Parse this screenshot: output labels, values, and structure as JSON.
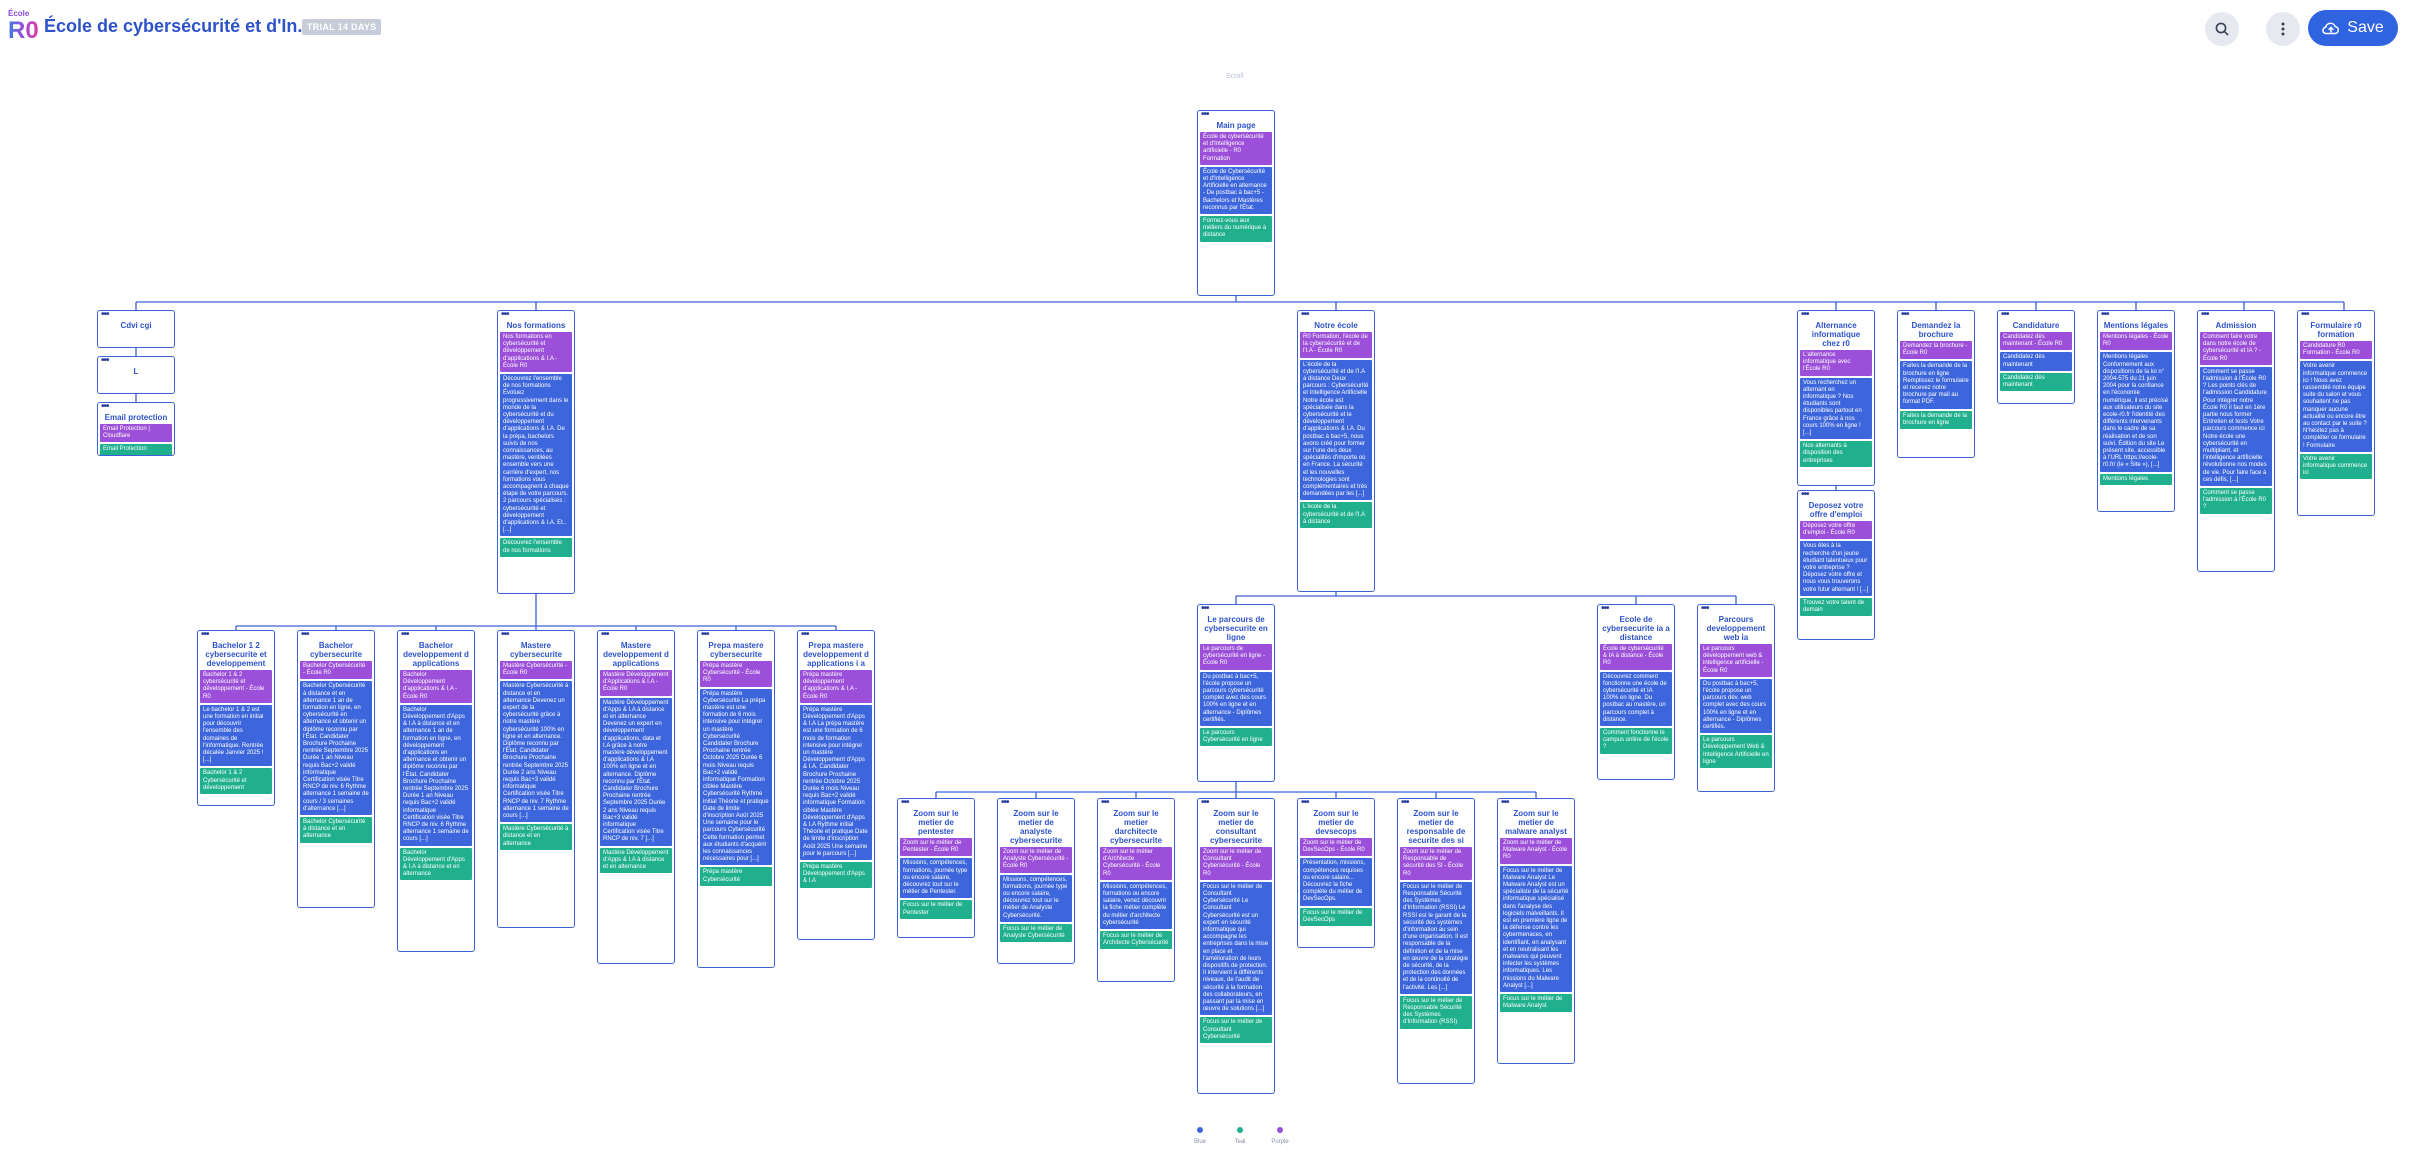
{
  "header": {
    "logo_line1": "École",
    "logo_line2": "R0",
    "site_title": "École de cybersécurité et d'In...",
    "trial_badge": "TRIAL 14 DAYS",
    "save_label": "Save",
    "icons": [
      "search-icon",
      "more-vertical-icon",
      "cloud-upload-icon"
    ]
  },
  "canvas": {
    "scroll_label": "Scroll"
  },
  "legend": [
    {
      "label": "Blue",
      "color": "#3d66dc"
    },
    {
      "label": "Teal",
      "color": "#20b08e"
    },
    {
      "label": "Purple",
      "color": "#9c4fd8"
    }
  ],
  "colors": {
    "accent": "#2f63e0",
    "card_border": "#3d62d6",
    "purple": "#9c4fd8",
    "blue": "#3d66dc",
    "teal": "#20b08e"
  },
  "cards": {
    "main": {
      "title": "Main page",
      "sections": [
        {
          "c": "p",
          "t": "École de cybersécurité et d'Intelligence artificielle - R0 Formation"
        },
        {
          "c": "b",
          "t": "École de Cybersécurité et d'Intelligence Artificielle en alternance - De postbac à bac+5 - Bachelors et Mastères reconnus par l'État."
        },
        {
          "c": "g",
          "t": "Formez-vous aux métiers du numérique à distance"
        }
      ]
    },
    "cdv": {
      "title": "Cdvi cgi",
      "sections": []
    },
    "l": {
      "title": "L",
      "sections": []
    },
    "email": {
      "title": "Email protection",
      "sections": [
        {
          "c": "p",
          "t": "Email Protection | Cloudflare"
        },
        {
          "c": "g",
          "t": "Email Protection"
        }
      ]
    },
    "nosformations": {
      "title": "Nos formations",
      "sections": [
        {
          "c": "p",
          "t": "Nos formations en cybersécurité et développement d'applications & I.A - École R0"
        },
        {
          "c": "b",
          "t": "Découvrez l'ensemble de nos formations Évoluez progressivement dans le monde de la cybersécurité et du développement d'applications & I.A. De la prépa, bachelors suivis de nos connaissances, au mastère, ventilées ensemble vers une carrière d'expert, nos formations vous accompagnent à chaque étape de votre parcours. 2 parcours spécialisés : cybersécurité et développement d'applications & I.A. Et..[...]"
        },
        {
          "c": "g",
          "t": "Découvrez l'ensemble de nos formations"
        }
      ]
    },
    "notreecole": {
      "title": "Notre école",
      "sections": [
        {
          "c": "p",
          "t": "R0 Formation, l'école de la cybersécurité et de l'I.A - École R0"
        },
        {
          "c": "b",
          "t": "L'école de la cybersécurité et de l'I.A à distance Deux parcours : Cybersécurité et Intelligence Artificielle Notre école est spécialisée dans la cybersécurité et le développement d'applications & I.A. Du postbac à bac+5, nous avons créé pour former sur l'une des deux spécialités d'importe où en France. La sécurité et les nouvelles technologies sont complémentaires et très demandées par les [...]"
        },
        {
          "c": "g",
          "t": "L'école de la cybersécurité et de l'I.A à distance"
        }
      ]
    },
    "alternance": {
      "title": "Alternance informatique chez r0",
      "sections": [
        {
          "c": "p",
          "t": "L'alternance informatique avec l'École R0"
        },
        {
          "c": "b",
          "t": "Vous recherchez un alternant en informatique ? Nos étudiants sont disponibles partout en France grâce à nos cours 100% en ligne ! [...]"
        },
        {
          "c": "g",
          "t": "Nos alternants à disposition des entreprises"
        }
      ]
    },
    "deposez": {
      "title": "Deposez votre offre d'emploi",
      "sections": [
        {
          "c": "p",
          "t": "Déposez votre offre d'emploi - École R0"
        },
        {
          "c": "b",
          "t": "Vous êtes à la recherche d'un jeune étudiant talentueux pour votre entreprise ? Déposez votre offre et nous vous trouverons votre futur alternant ! [...]"
        },
        {
          "c": "g",
          "t": "Trouvez votre talent de demain"
        }
      ]
    },
    "brochure": {
      "title": "Demandez la brochure",
      "sections": [
        {
          "c": "p",
          "t": "Demandez la brochure - École R0"
        },
        {
          "c": "b",
          "t": "Faites la demande de la brochure en ligne Remplissez le formulaire et recevez notre brochure par mail au format PDF."
        },
        {
          "c": "g",
          "t": "Faites la demande de la brochure en ligne"
        }
      ]
    },
    "candidature": {
      "title": "Candidature",
      "sections": [
        {
          "c": "p",
          "t": "Candidatez dès maintenant - École R0"
        },
        {
          "c": "b",
          "t": "Candidatez dès maintenant"
        },
        {
          "c": "g",
          "t": "Candidatez dès maintenant"
        }
      ]
    },
    "mentions": {
      "title": "Mentions légales",
      "sections": [
        {
          "c": "p",
          "t": "Mentions légales - École R0"
        },
        {
          "c": "b",
          "t": "Mentions légales Conformément aux dispositions de la loi n° 2004-575 du 21 juin 2004 pour la confiance en l'économie numérique, il est précisé aux utilisateurs du site ecole-r0.fr l'identité des différents intervenants dans le cadre de sa réalisation et de son suivi. Édition du site Le présent site, accessible à l'URL https://ecole-r0.fr/ (le « Site »), [...]"
        },
        {
          "c": "g",
          "t": "Mentions légales"
        }
      ]
    },
    "admission": {
      "title": "Admission",
      "sections": [
        {
          "c": "p",
          "t": "Comment faire votre dans notre école de cybersécurité et IA ? - École R0"
        },
        {
          "c": "b",
          "t": "Comment se passe l'admission à l'École R0 ? Les points clés de l'admission Candidature Pour intégrer notre École R0 il faut en 1ère partie nous former Entretien et tests Votre parcours commence ici Notre école une cybersécurité en multipliant, et l'intelligence artificielle révolutionne nos modes de vie. Pour faire face à ces défis, [...]"
        },
        {
          "c": "g",
          "t": "Comment se passe l'admission à l'École R0 ?"
        }
      ]
    },
    "formulaire": {
      "title": "Formulaire r0 formation",
      "sections": [
        {
          "c": "p",
          "t": "Candidature R0 Formation - École R0"
        },
        {
          "c": "b",
          "t": "Votre avenir informatique commence ici ! Nous avez rassemblé notre équipe suite du salon et vous souhaitent ne pas manquer aucune actualité ou encore être au contact par le suite ? N'hésitez pas à compléter ce formulaire ! Formulaire"
        },
        {
          "c": "g",
          "t": "Votre avenir informatique commence ici"
        }
      ]
    },
    "bach_cyber_dev": {
      "title": "Bachelor 1 2 cybersecurite et developpement",
      "sections": [
        {
          "c": "p",
          "t": "Bachelor 1 & 2 cybersécurité et développement - École R0"
        },
        {
          "c": "b",
          "t": "Le bachelor 1 & 2 est une formation en initial pour découvrir l'ensemble des domaines de l'informatique. Rentrée décalée Janvier 2025 ! [...]"
        },
        {
          "c": "g",
          "t": "Bachelor 1 & 2 Cybersécurité et développement"
        }
      ]
    },
    "bach_cyber": {
      "title": "Bachelor cybersecurite",
      "sections": [
        {
          "c": "p",
          "t": "Bachelor Cybersécurité - École R0"
        },
        {
          "c": "b",
          "t": "Bachelor Cybersécurité à distance et en alternance 1 an de formation en ligne, en cybersécurité en alternance et obtenir un diplôme reconnu par l'État. Candidater Brochure Prochaine rentrée Septembre 2025 Durée 1 an Niveau requis Bac+2 validé informatique Certification visée Titre RNCP de niv. 6 Rythme alternance 1 semaine de cours / 3 semaines d'alternance [...]"
        },
        {
          "c": "g",
          "t": "Bachelor Cybersécurité à distance et en alternance"
        }
      ]
    },
    "bach_dev": {
      "title": "Bachelor developpement d applications",
      "sections": [
        {
          "c": "p",
          "t": "Bachelor Développement d'applications & I.A - École R0"
        },
        {
          "c": "b",
          "t": "Bachelor Développement d'Apps & I.A à distance et en alternance 1 an de formation en ligne, en développement d'applications en alternance et obtenir un diplôme reconnu par l'État. Candidater Brochure Prochaine rentrée Septembre 2025 Durée 1 an Niveau requis Bac+2 validé informatique Certification visée Titre RNCP de niv. 6 Rythme alternance 1 semaine de cours [...]"
        },
        {
          "c": "g",
          "t": "Bachelor Développement d'Apps & I.A à distance et en alternance"
        }
      ]
    },
    "master_cyber": {
      "title": "Mastere cybersecurite",
      "sections": [
        {
          "c": "p",
          "t": "Mastère Cybersécurité - École R0"
        },
        {
          "c": "b",
          "t": "Mastère Cybersécurité à distance et en alternance Devenez un expert de la cybersécurité grâce à notre mastère cybersécurité 100% en ligne et en alternance. Diplôme reconnu par l'État. Candidater Brochure Prochaine rentrée Septembre 2025 Durée 2 ans Niveau requis Bac+3 validé informatique Certification visée Titre RNCP de niv. 7 Rythme alternance 1 semaine de cours [...]"
        },
        {
          "c": "g",
          "t": "Mastère Cybersécurité à distance et en alternance"
        }
      ]
    },
    "master_dev": {
      "title": "Mastere developpement d applications",
      "sections": [
        {
          "c": "p",
          "t": "Mastère Développement d'Applications & I.A - École R0"
        },
        {
          "c": "b",
          "t": "Mastère Développement d'Apps & I.A à distance et en alternance Devenez un expert en développement d'applications, data et I.A grâce à notre mastère développement d'applications & I.A 100% en ligne et en alternance. Diplôme reconnu par l'État. Candidater Brochure Prochaine rentrée Septembre 2025 Durée 2 ans Niveau requis Bac+3 validé informatique Certification visée Titre RNCP de niv. 7 [...]"
        },
        {
          "c": "g",
          "t": "Mastère Développement d'Apps & I.A à distance et en alternance"
        }
      ]
    },
    "prepa_cyber": {
      "title": "Prepa mastere cybersecurite",
      "sections": [
        {
          "c": "p",
          "t": "Prépa mastère Cybersécurité - École R0"
        },
        {
          "c": "b",
          "t": "Prépa mastère Cybersécurité La prépa mastère est une formation de 6 mois intensive pour intégrer un mastère Cybersécurité Candidater Brochure Prochaine rentrée Octobre 2025 Durée 6 mois Niveau requis Bac+2 validé informatique Formation ciblée Mastère Cybersécurité Rythme initial Théorie et pratique Date de limite d'inscription Août 2025 Une semaine pour le parcours Cybersécurité Cette formation permet aux étudiants d'acquérir les connaissances nécessaires pour [...]"
        },
        {
          "c": "g",
          "t": "Prépa mastère Cybersécurité"
        }
      ]
    },
    "prepa_dev": {
      "title": "Prepa mastere developpement d applications i a",
      "sections": [
        {
          "c": "p",
          "t": "Prépa mastère développement d'applications & I.A - École R0"
        },
        {
          "c": "b",
          "t": "Prépa mastère Développement d'Apps & I.A La prépa mastère est une formation de 6 mois de formation intensive pour intégrer un mastère Développement d'Apps & I.A. Candidater Brochure Prochaine rentrée Octobre 2025 Durée 6 mois Niveau requis Bac+2 validé informatique Formation ciblée Mastère Développement d'Apps & I.A Rythme initial Théorie et pratique Date de limite d'inscription Août 2025 Une semaine pour le parcours [...]"
        },
        {
          "c": "g",
          "t": "Prépa mastère Développement d'Apps & I.A"
        }
      ]
    },
    "parcours_cyber": {
      "title": "Le parcours de cybersecurite en ligne",
      "sections": [
        {
          "c": "p",
          "t": "Le parcours de cybersécurité en ligne - École R0"
        },
        {
          "c": "b",
          "t": "Du postbac à bac+5, l'école propose un parcours cybersécurité complet avec des cours 100% en ligne et en alternance - Diplômes certifiés."
        },
        {
          "c": "g",
          "t": "Le parcours Cybersécurité en ligne"
        }
      ]
    },
    "ecole_distance": {
      "title": "Ecole de cybersecurite ia a distance",
      "sections": [
        {
          "c": "p",
          "t": "École de cybersécurité & IA à distance - École R0"
        },
        {
          "c": "b",
          "t": "Découvrez comment fonctionne une école de cybersécurité et IA 100% en ligne. Du postbac au mastère, un parcours complet à distance."
        },
        {
          "c": "g",
          "t": "Comment fonctionne le campus online de l'école ?"
        }
      ]
    },
    "parcours_dev": {
      "title": "Parcours developpement web ia",
      "sections": [
        {
          "c": "p",
          "t": "Le parcours développement web & intelligence artificielle - École R0"
        },
        {
          "c": "b",
          "t": "Du postbac à bac+5, l'école propose un parcours dév. web complet avec des cours 100% en ligne et en alternance - Diplômes certifiés."
        },
        {
          "c": "g",
          "t": "Le parcours Développement Web & Intelligence Artificielle en ligne"
        }
      ]
    },
    "zoom_pentest": {
      "title": "Zoom sur le metier de pentester",
      "sections": [
        {
          "c": "p",
          "t": "Zoom sur le métier de Pentester - École R0"
        },
        {
          "c": "b",
          "t": "Missions, compétences, formations, journée type ou encore salaire, découvrez tout sur le métier de Pentester."
        },
        {
          "c": "g",
          "t": "Focus sur le métier de Pentester"
        }
      ]
    },
    "zoom_analyste": {
      "title": "Zoom sur le metier de analyste cybersecurite",
      "sections": [
        {
          "c": "p",
          "t": "Zoom sur le métier de Analyste Cybersécurité - École R0"
        },
        {
          "c": "b",
          "t": "Missions, compétences, formations, journée type ou encore salaire, découvrez tout sur le métier de Analyste Cybersécurité."
        },
        {
          "c": "g",
          "t": "Focus sur le métier de Analyste Cybersécurité"
        }
      ]
    },
    "zoom_architecte": {
      "title": "Zoom sur le metier darchitecte cybersecurite",
      "sections": [
        {
          "c": "p",
          "t": "Zoom sur le métier d'Architecte Cybersécurité - École R0"
        },
        {
          "c": "b",
          "t": "Missions, compétences, formations ou encore salaire, venez découvrir la fiche métier complète du métier d'architecte cybersécurité"
        },
        {
          "c": "g",
          "t": "Focus sur le métier de Architecte Cybersécurité"
        }
      ]
    },
    "zoom_consultant": {
      "title": "Zoom sur le metier de consultant cybersecurite",
      "sections": [
        {
          "c": "p",
          "t": "Zoom sur le métier de Consultant Cybersécurité - École R0"
        },
        {
          "c": "b",
          "t": "Focus sur le métier de Consultant Cybersécurité Le Consultant Cybersécurité est un expert en sécurité informatique qui accompagne les entreprises dans la mise en place et l'amélioration de leurs dispositifs de protection. Il intervient à différents niveaux, de l'audit de sécurité à la formation des collaborateurs, en passant par la mise en œuvre de solutions [...]"
        },
        {
          "c": "g",
          "t": "Focus sur le métier de Consultant Cybersécurité"
        }
      ]
    },
    "zoom_devsecops": {
      "title": "Zoom sur le metier de devsecops",
      "sections": [
        {
          "c": "p",
          "t": "Zoom sur le métier de DevSecOps - École R0"
        },
        {
          "c": "b",
          "t": "Présentation, missions, compétences requises ou encore salaire... Découvrez la fiche complète du métier de DevSecOps."
        },
        {
          "c": "g",
          "t": "Focus sur le métier de DevSecOps"
        }
      ]
    },
    "zoom_rssi": {
      "title": "Zoom sur le metier de responsable de securite des si",
      "sections": [
        {
          "c": "p",
          "t": "Zoom sur le métier de Responsable de sécurité des SI - École R0"
        },
        {
          "c": "b",
          "t": "Focus sur le métier de Responsable Sécurité des Systèmes d'Information (RSSI) Le RSSI est le garant de la sécurité des systèmes d'information au sein d'une organisation. Il est responsable de la définition et de la mise en œuvre de la stratégie de sécurité, de la protection des données et de la continuité de l'activité. Les [...]"
        },
        {
          "c": "g",
          "t": "Focus sur le métier de Responsable Sécurité des Systèmes d'Information (RSSI)"
        }
      ]
    },
    "zoom_malware": {
      "title": "Zoom sur le metier de malware analyst",
      "sections": [
        {
          "c": "p",
          "t": "Zoom sur le métier de Malware Analyst - École R0"
        },
        {
          "c": "b",
          "t": "Focus sur le métier de Malware Analyst Le Malware Analyst est un spécialiste de la sécurité informatique spécialisé dans l'analyse des logiciels malveillants. Il est en première ligne de la défense contre les cybermenaces, en identifiant, en analysant et en neutralisant les malwares qui peuvent infecter les systèmes informatiques. Les missions du Malware Analyst [...]"
        },
        {
          "c": "g",
          "t": "Focus sur le métier de Malware Analyst"
        }
      ]
    }
  }
}
